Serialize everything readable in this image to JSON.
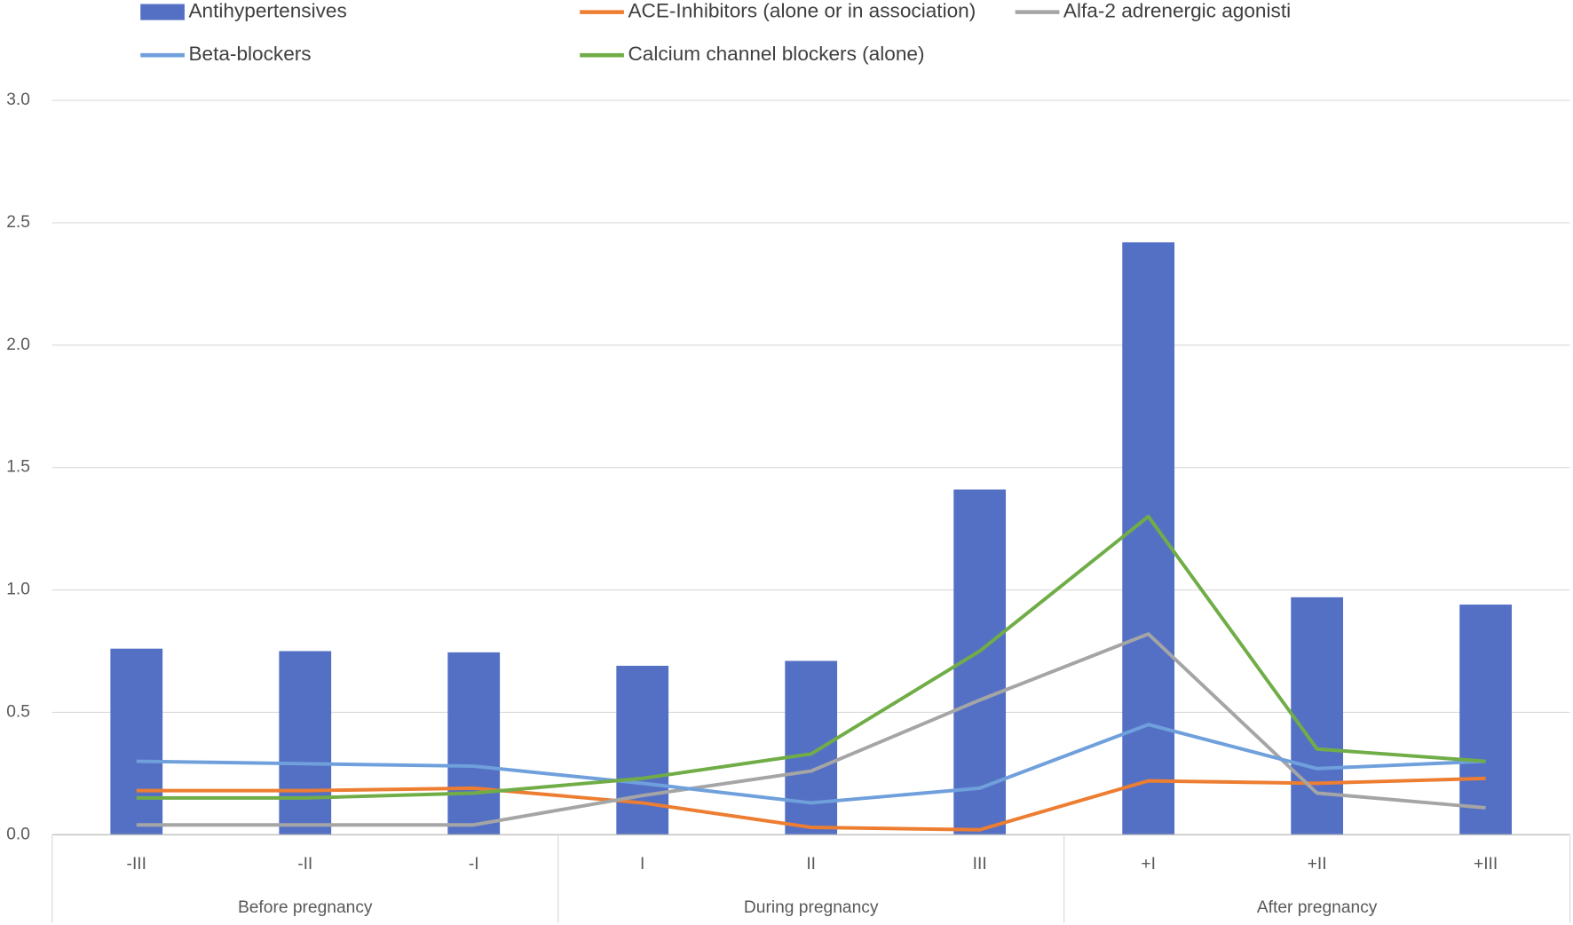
{
  "chart_data": {
    "type": "bar-line",
    "categories": [
      "-III",
      "-II",
      "-I",
      "I",
      "II",
      "III",
      "+I",
      "+II",
      "+III"
    ],
    "groups": [
      "Before pregnancy",
      "During pregnancy",
      "After pregnancy"
    ],
    "series": [
      {
        "name": "Antihypertensives",
        "type": "bar",
        "color": "#5470C4",
        "values": [
          0.76,
          0.75,
          0.745,
          0.69,
          0.71,
          1.41,
          2.42,
          0.97,
          0.94
        ]
      },
      {
        "name": "ACE-Inhibitors (alone or in association)",
        "type": "line",
        "color": "#ED7D31",
        "values": [
          0.18,
          0.18,
          0.19,
          0.13,
          0.03,
          0.02,
          0.22,
          0.21,
          0.23
        ]
      },
      {
        "name": "Alfa-2 adrenergic agonisti",
        "type": "line",
        "color": "#A5A5A5",
        "values": [
          0.04,
          0.04,
          0.04,
          0.16,
          0.26,
          0.55,
          0.82,
          0.17,
          0.11
        ]
      },
      {
        "name": "Beta-blockers",
        "type": "line",
        "color": "#6FA0DC",
        "values": [
          0.3,
          0.29,
          0.28,
          0.21,
          0.13,
          0.19,
          0.45,
          0.27,
          0.3
        ]
      },
      {
        "name": "Calcium channel blockers (alone)",
        "type": "line",
        "color": "#70AD47",
        "values": [
          0.15,
          0.15,
          0.17,
          0.23,
          0.33,
          0.75,
          1.3,
          0.35,
          0.3
        ]
      }
    ],
    "ylim": [
      0,
      3
    ],
    "yticks": [
      {
        "value": 0,
        "label": "0.0"
      },
      0.5,
      {
        "value": 1,
        "label": "1.0"
      },
      1.5,
      {
        "value": 2,
        "label": "2.0"
      },
      2.5,
      {
        "value": 3,
        "label": "3.0"
      }
    ],
    "grid": true
  }
}
